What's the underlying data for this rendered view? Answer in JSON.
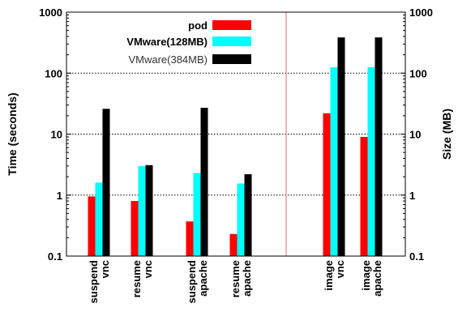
{
  "chart_data": {
    "type": "bar",
    "ylabel_left": "Time (seconds)",
    "ylabel_right": "Size (MB)",
    "y_scale": "log",
    "ylim": [
      0.1,
      1000
    ],
    "y_ticks": [
      "0.1",
      "1",
      "10",
      "100",
      "1000"
    ],
    "grid": "dashed horizontal at decades",
    "legend_position": "top-center",
    "colors": {
      "pod": "#ff0000",
      "vmware128": "#00ffff",
      "vmware384": "#000000",
      "divider": "#e07070"
    },
    "categories": [
      {
        "line1": "suspend",
        "line2": "vnc"
      },
      {
        "line1": "resume",
        "line2": "vnc"
      },
      {
        "line1": "suspend",
        "line2": "apache"
      },
      {
        "line1": "resume",
        "line2": "apache"
      },
      {
        "line1": "image",
        "line2": "vnc"
      },
      {
        "line1": "image",
        "line2": "apache"
      }
    ],
    "series": [
      {
        "name": "pod",
        "values": [
          0.95,
          0.8,
          0.37,
          0.23,
          22,
          9
        ]
      },
      {
        "name": "VMware(128MB)",
        "values": [
          1.6,
          3.0,
          2.3,
          1.55,
          125,
          125
        ]
      },
      {
        "name": "VMware(384MB)",
        "values": [
          26,
          3.1,
          27,
          2.2,
          385,
          385
        ]
      }
    ]
  }
}
